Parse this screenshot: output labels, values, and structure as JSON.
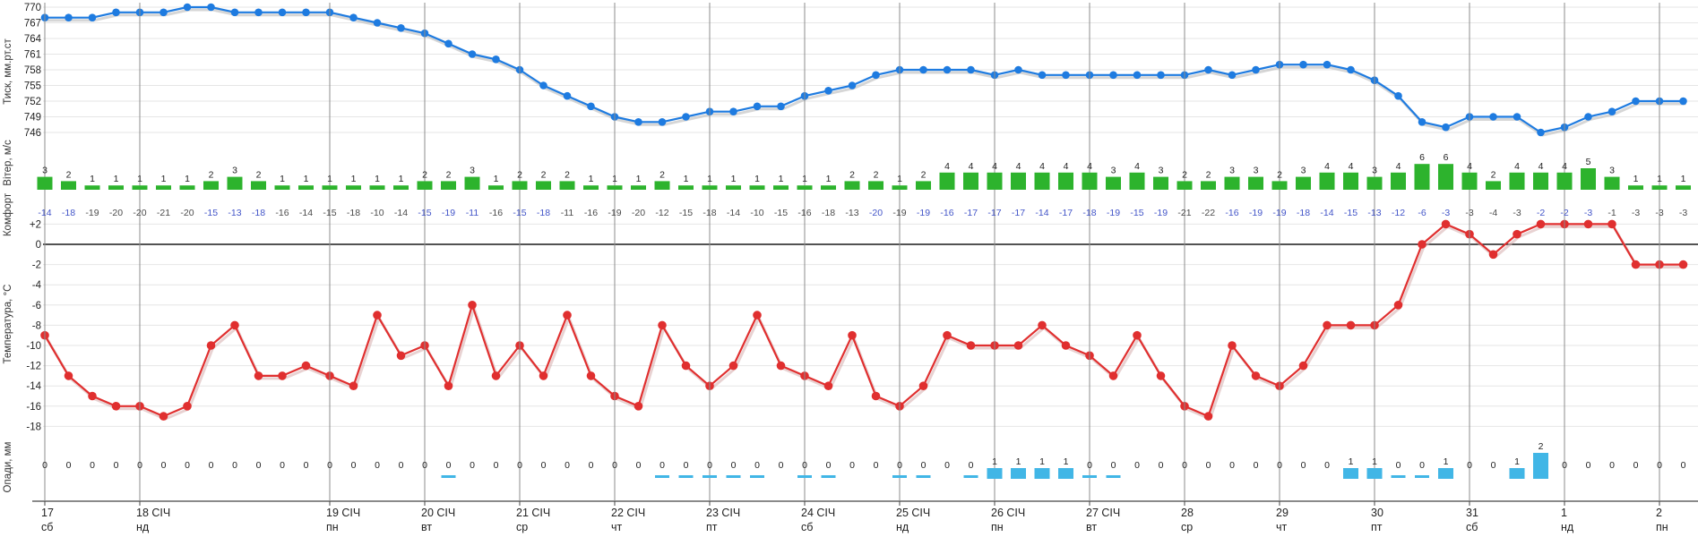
{
  "chart_data": {
    "type": "line",
    "description": "meteogram with pressure line, wind bars, comfort values, temperature line, precipitation bars",
    "point_count": 70,
    "x_axis": {
      "day_ticks": [
        {
          "date": "17",
          "weekday": "сб",
          "index": 0
        },
        {
          "date": "18 СІЧ",
          "weekday": "нд",
          "index": 4
        },
        {
          "date": "19 СІЧ",
          "weekday": "пн",
          "index": 12
        },
        {
          "date": "20 СІЧ",
          "weekday": "вт",
          "index": 16
        },
        {
          "date": "21 СІЧ",
          "weekday": "ср",
          "index": 20
        },
        {
          "date": "22 СІЧ",
          "weekday": "чт",
          "index": 24
        },
        {
          "date": "23 СІЧ",
          "weekday": "пт",
          "index": 28
        },
        {
          "date": "24 СІЧ",
          "weekday": "сб",
          "index": 32
        },
        {
          "date": "25 СІЧ",
          "weekday": "нд",
          "index": 36
        },
        {
          "date": "26 СІЧ",
          "weekday": "пн",
          "index": 40
        },
        {
          "date": "27 СІЧ",
          "weekday": "вт",
          "index": 44
        },
        {
          "date": "28",
          "weekday": "ср",
          "index": 48
        },
        {
          "date": "29",
          "weekday": "чт",
          "index": 52
        },
        {
          "date": "30",
          "weekday": "пт",
          "index": 56
        },
        {
          "date": "31",
          "weekday": "сб",
          "index": 60
        },
        {
          "date": "1",
          "weekday": "нд",
          "index": 64
        },
        {
          "date": "2",
          "weekday": "пн",
          "index": 68
        }
      ]
    },
    "pressure": {
      "axis_title": "Тиск, мм.рт.ст",
      "tick_labels": [
        770,
        767,
        764,
        761,
        758,
        755,
        752,
        749,
        746
      ],
      "values": [
        768,
        768,
        768,
        769,
        769,
        769,
        770,
        770,
        769,
        769,
        769,
        769,
        769,
        768,
        767,
        766,
        765,
        763,
        761,
        760,
        758,
        755,
        753,
        751,
        749,
        748,
        748,
        749,
        750,
        750,
        751,
        751,
        753,
        754,
        755,
        757,
        758,
        758,
        758,
        758,
        757,
        758,
        757,
        757,
        757,
        757,
        757,
        757,
        757,
        758,
        757,
        758,
        759,
        759,
        759,
        758,
        756,
        753,
        748,
        747,
        749,
        749,
        749,
        746,
        747,
        749,
        750,
        752,
        752,
        752
      ]
    },
    "wind": {
      "axis_title": "Вітер, м/с",
      "values": [
        3,
        2,
        1,
        1,
        1,
        1,
        1,
        2,
        3,
        2,
        1,
        1,
        1,
        1,
        1,
        1,
        2,
        2,
        3,
        1,
        2,
        2,
        2,
        1,
        1,
        1,
        2,
        1,
        1,
        1,
        1,
        1,
        1,
        1,
        2,
        2,
        1,
        2,
        4,
        4,
        4,
        4,
        4,
        4,
        4,
        3,
        4,
        3,
        2,
        2,
        3,
        3,
        2,
        3,
        4,
        4,
        3,
        4,
        6,
        6,
        4,
        2,
        4,
        4,
        4,
        5,
        3,
        1,
        1,
        1
      ]
    },
    "comfort": {
      "axis_title": "Комфорт",
      "values": [
        -14,
        -18,
        -19,
        -20,
        -20,
        -21,
        -20,
        -15,
        -13,
        -18,
        -16,
        -14,
        -15,
        -18,
        -10,
        -14,
        -15,
        -19,
        -11,
        -16,
        -15,
        -18,
        -11,
        -16,
        -19,
        -20,
        -12,
        -15,
        -18,
        -14,
        -10,
        -15,
        -16,
        -18,
        -13,
        -20,
        -19,
        -19,
        -16,
        -17,
        -17,
        -17,
        -14,
        -17,
        -18,
        -19,
        -15,
        -19,
        -21,
        -22,
        -16,
        -19,
        -19,
        -18,
        -14,
        -15,
        -13,
        -12,
        -6,
        -3,
        -3,
        -4,
        -3,
        -2,
        -2,
        -3,
        -1,
        -3,
        -3,
        -3
      ],
      "blue_indices": [
        0,
        1,
        7,
        8,
        9,
        16,
        17,
        18,
        20,
        21,
        35,
        37,
        38,
        39,
        40,
        41,
        42,
        43,
        44,
        45,
        46,
        47,
        50,
        51,
        52,
        53,
        54,
        55,
        56,
        57,
        58,
        59,
        63,
        64,
        65
      ]
    },
    "temperature": {
      "axis_title": "Температура, °С",
      "tick_labels": [
        "+2",
        "0",
        "-2",
        "-4",
        "-6",
        "-8",
        "-10",
        "-12",
        "-14",
        "-16",
        "-18"
      ],
      "values": [
        -9,
        -13,
        -15,
        -16,
        -16,
        -17,
        -16,
        -10,
        -8,
        -13,
        -13,
        -12,
        -13,
        -14,
        -7,
        -11,
        -10,
        -14,
        -6,
        -13,
        -10,
        -13,
        -7,
        -13,
        -15,
        -16,
        -8,
        -12,
        -14,
        -12,
        -7,
        -12,
        -13,
        -14,
        -9,
        -15,
        -16,
        -14,
        -9,
        -10,
        -10,
        -10,
        -8,
        -10,
        -11,
        -13,
        -9,
        -13,
        -16,
        -17,
        -10,
        -13,
        -14,
        -12,
        -8,
        -8,
        -8,
        -6,
        0,
        2,
        1,
        -1,
        1,
        2,
        2,
        2,
        2,
        -2,
        -2,
        -2
      ]
    },
    "precipitation": {
      "axis_title": "Опади, мм",
      "values": [
        0,
        0,
        0,
        0,
        0,
        0,
        0,
        0,
        0,
        0,
        0,
        0,
        0,
        0,
        0,
        0,
        0,
        0,
        0,
        0,
        0,
        0,
        0,
        0,
        0,
        0,
        0,
        0,
        0,
        0,
        0,
        0,
        0,
        0,
        0,
        0,
        0,
        0,
        0,
        0,
        1,
        1,
        1,
        1,
        0,
        0,
        0,
        0,
        0,
        0,
        0,
        0,
        0,
        0,
        0,
        1,
        1,
        0,
        0,
        1,
        0,
        0,
        1,
        2,
        0,
        0,
        0,
        0,
        0,
        0
      ],
      "trace_indices": [
        17,
        26,
        27,
        28,
        29,
        30,
        32,
        33,
        36,
        37,
        39,
        44,
        45,
        57,
        58
      ]
    }
  },
  "colors": {
    "pressure_line": "#1e7be0",
    "temperature_line": "#e02f2f",
    "wind_bar": "#2db32d",
    "precip_bar": "#41b6e6",
    "comfort_blue": "#4355c8",
    "comfort_gray": "#4c4c4c",
    "grid_vertical": "#8c8c8c",
    "grid_light": "#e6e6e6",
    "zero_line": "#1a1a1a",
    "tick_text": "#222222",
    "shadow_pressure": "#c4c4c4",
    "shadow_temperature": "#d8b4b4"
  }
}
